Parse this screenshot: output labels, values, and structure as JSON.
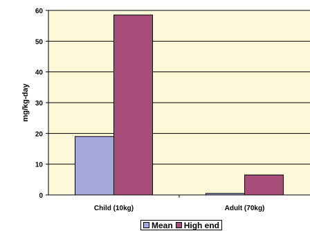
{
  "chart_data": {
    "type": "bar",
    "title": "",
    "xlabel": "",
    "ylabel": "mg/kg-day",
    "categories": [
      "Child (10kg)",
      "Adult (70kg)"
    ],
    "series": [
      {
        "name": "Mean",
        "values": [
          19,
          0.5
        ],
        "color": "#a3a8d9"
      },
      {
        "name": "High end",
        "values": [
          58.5,
          6.5
        ],
        "color": "#a64d79"
      }
    ],
    "ylim": [
      0,
      60
    ],
    "yticks": [
      0,
      10,
      20,
      30,
      40,
      50,
      60
    ],
    "grid": true,
    "legend": "bottom-center",
    "plot_background": "#fdf9d8"
  }
}
